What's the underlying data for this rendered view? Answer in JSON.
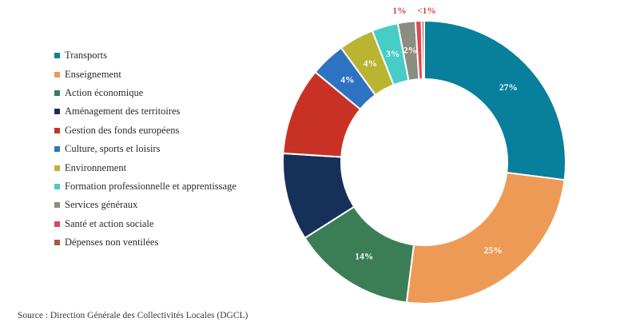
{
  "chart_data": {
    "type": "pie",
    "donut": true,
    "title": "",
    "source": "Source : Direction Générale des Collectivités Locales (DGCL)",
    "legend_position": "left",
    "slices": [
      {
        "label": "Transports",
        "value": 27,
        "display": "27%",
        "color": "#087f9b",
        "label_placement": "inside"
      },
      {
        "label": "Enseignement",
        "value": 25,
        "display": "25%",
        "color": "#ee9a57",
        "label_placement": "inside"
      },
      {
        "label": "Action économique",
        "value": 14,
        "display": "14%",
        "color": "#3b7d55",
        "label_placement": "inside"
      },
      {
        "label": "Aménagement des territoires",
        "value": 10,
        "display": "",
        "color": "#17305a",
        "label_placement": "none"
      },
      {
        "label": "Gestion des fonds européens",
        "value": 10,
        "display": "",
        "color": "#c83225",
        "label_placement": "none"
      },
      {
        "label": "Culture, sports et loisirs",
        "value": 4,
        "display": "4%",
        "color": "#2e73c1",
        "label_placement": "inside"
      },
      {
        "label": "Environnement",
        "value": 4,
        "display": "4%",
        "color": "#b9b432",
        "label_placement": "inside"
      },
      {
        "label": "Formation professionnelle et apprentissage",
        "value": 3,
        "display": "3%",
        "color": "#47ccc6",
        "label_placement": "inside"
      },
      {
        "label": "Services généraux",
        "value": 2,
        "display": "2%",
        "color": "#8a8d80",
        "label_placement": "inside"
      },
      {
        "label": "Santé et action sociale",
        "value": 0.7,
        "display": "1%",
        "color": "#e04653",
        "label_placement": "outside"
      },
      {
        "label": "Dépenses non ventilées",
        "value": 0.3,
        "display": "<1%",
        "color": "#a45a3c",
        "label_placement": "outside"
      }
    ]
  }
}
